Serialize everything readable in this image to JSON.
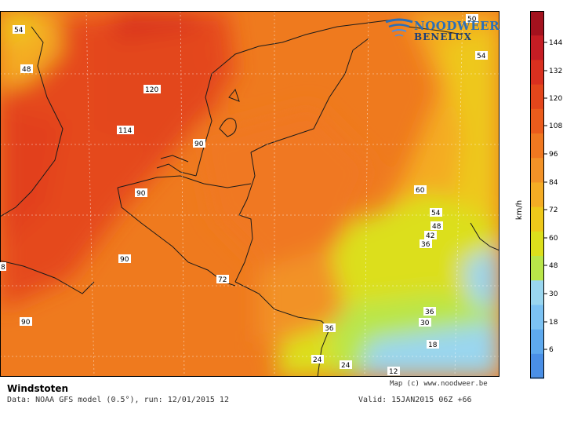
{
  "title": "Windstoten",
  "subtitle": "Data: NOAA GFS model (0.5°), run: 12/01/2015 12",
  "valid": "Valid: 15JAN2015 06Z +66",
  "credit": "Map (c) www.noodweer.be",
  "logo": {
    "line1": "NOODWEER",
    "line2": "BENELUX"
  },
  "unit": "km/h",
  "colorbar": {
    "ticks": [
      "144",
      "132",
      "120",
      "108",
      "96",
      "84",
      "72",
      "60",
      "48",
      "30",
      "18",
      "6"
    ],
    "colors": [
      "#a3121e",
      "#c51d24",
      "#d9301f",
      "#e3461b",
      "#eb5c1c",
      "#f07820",
      "#f29227",
      "#f4ac24",
      "#eec81a",
      "#dcdf1c",
      "#b9e649",
      "#9ad6ef",
      "#7cc2f3",
      "#5ea9ee",
      "#4a8fe6"
    ]
  },
  "map_values": [
    {
      "text": "54"
    },
    {
      "text": "48"
    },
    {
      "text": "120"
    },
    {
      "text": "114"
    },
    {
      "text": "90"
    },
    {
      "text": "90"
    },
    {
      "text": "90"
    },
    {
      "text": "90"
    },
    {
      "text": "72"
    },
    {
      "text": "60"
    },
    {
      "text": "54"
    },
    {
      "text": "48"
    },
    {
      "text": "42"
    },
    {
      "text": "36"
    },
    {
      "text": "36"
    },
    {
      "text": "30"
    },
    {
      "text": "36"
    },
    {
      "text": "18"
    },
    {
      "text": "24"
    },
    {
      "text": "24"
    },
    {
      "text": "12"
    },
    {
      "text": "54"
    },
    {
      "text": "50"
    },
    {
      "text": "8"
    }
  ]
}
